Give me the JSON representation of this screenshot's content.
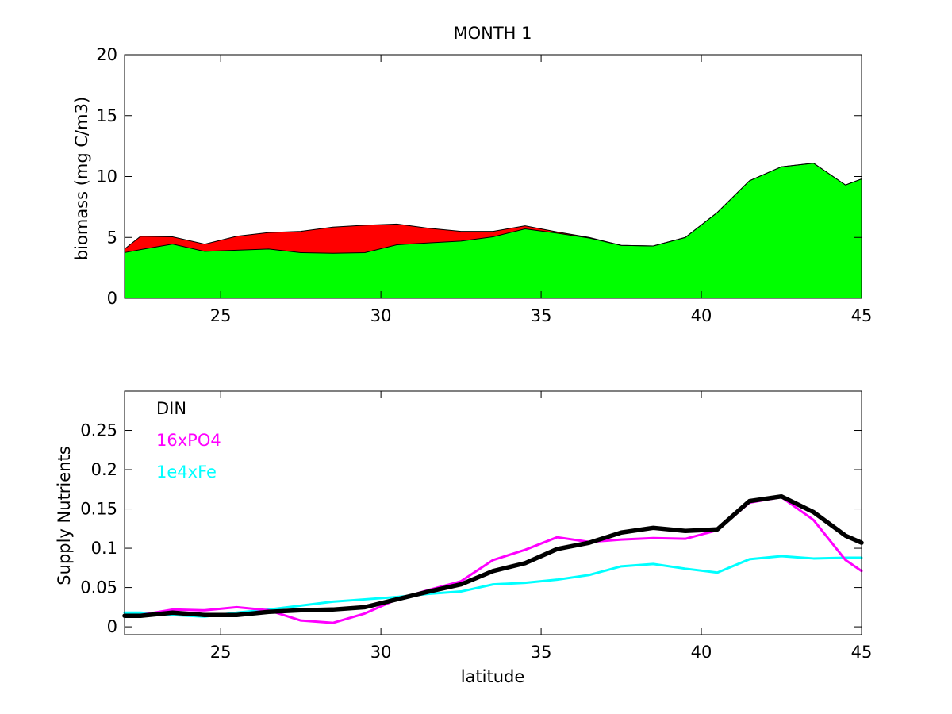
{
  "figure": {
    "title": "MONTH 1"
  },
  "chart_data": [
    {
      "type": "area",
      "stacked": true,
      "title": "MONTH 1",
      "xlabel": "",
      "ylabel": "biomass (mg C/m3)",
      "xlim": [
        22,
        45
      ],
      "ylim": [
        0,
        20
      ],
      "xticks": [
        25,
        30,
        35,
        40,
        45
      ],
      "yticks": [
        0,
        5,
        10,
        15,
        20
      ],
      "grid": false,
      "x": [
        22,
        22.5,
        23.5,
        24.5,
        25.5,
        26.5,
        27.5,
        28.5,
        29.5,
        30.5,
        31.5,
        32.5,
        33.5,
        34.5,
        35.5,
        36.5,
        37.5,
        38.5,
        39.5,
        40.5,
        41.5,
        42.5,
        43.5,
        44.5,
        45
      ],
      "series": [
        {
          "color": "#00ff00",
          "values": [
            3.75,
            4.0,
            4.45,
            3.85,
            3.95,
            4.05,
            3.75,
            3.7,
            3.75,
            4.4,
            4.55,
            4.7,
            5.05,
            5.7,
            5.35,
            4.95,
            4.35,
            4.3,
            5.0,
            7.05,
            9.65,
            10.8,
            11.1,
            9.3,
            9.8
          ]
        },
        {
          "color": "#ff0000",
          "values": [
            0.3,
            1.1,
            0.6,
            0.6,
            1.15,
            1.35,
            1.75,
            2.15,
            2.25,
            1.7,
            1.2,
            0.8,
            0.45,
            0.25,
            0.1,
            0.05,
            0.0,
            0.0,
            0.0,
            0.0,
            0.0,
            0.0,
            0.0,
            0.0,
            0.0
          ]
        }
      ]
    },
    {
      "type": "line",
      "title": "",
      "xlabel": "latitude",
      "ylabel": "Supply Nutrients",
      "xlim": [
        22,
        45
      ],
      "ylim": [
        -0.01,
        0.3
      ],
      "xticks": [
        25,
        30,
        35,
        40,
        45
      ],
      "yticks": [
        0,
        0.05,
        0.1,
        0.15,
        0.2,
        0.25
      ],
      "grid": false,
      "legend_position": "top-left",
      "x": [
        22,
        22.5,
        23.5,
        24.5,
        25.5,
        26.5,
        27.5,
        28.5,
        29.5,
        30.5,
        31.5,
        32.5,
        33.5,
        34.5,
        35.5,
        36.5,
        37.5,
        38.5,
        39.5,
        40.5,
        41.5,
        42.5,
        43.5,
        44.5,
        45
      ],
      "series": [
        {
          "name": "1e4xFe",
          "color": "#00ffff",
          "width": 3,
          "values": [
            0.018,
            0.018,
            0.015,
            0.013,
            0.018,
            0.022,
            0.027,
            0.032,
            0.035,
            0.038,
            0.042,
            0.045,
            0.054,
            0.056,
            0.06,
            0.066,
            0.077,
            0.08,
            0.074,
            0.069,
            0.086,
            0.09,
            0.087,
            0.088,
            0.088
          ]
        },
        {
          "name": "16xPO4",
          "color": "#ff00ff",
          "width": 3,
          "values": [
            0.015,
            0.015,
            0.022,
            0.021,
            0.025,
            0.021,
            0.008,
            0.005,
            0.017,
            0.035,
            0.047,
            0.058,
            0.085,
            0.098,
            0.114,
            0.108,
            0.111,
            0.113,
            0.112,
            0.123,
            0.158,
            0.165,
            0.136,
            0.085,
            0.071
          ]
        },
        {
          "name": "DIN",
          "color": "#000000",
          "width": 5.5,
          "values": [
            0.014,
            0.014,
            0.018,
            0.015,
            0.015,
            0.019,
            0.021,
            0.022,
            0.025,
            0.035,
            0.045,
            0.054,
            0.071,
            0.081,
            0.099,
            0.107,
            0.12,
            0.126,
            0.122,
            0.124,
            0.16,
            0.166,
            0.146,
            0.116,
            0.107
          ]
        }
      ],
      "legend": [
        {
          "label": "DIN",
          "color": "#000000"
        },
        {
          "label": "16xPO4",
          "color": "#ff00ff"
        },
        {
          "label": "1e4xFe",
          "color": "#00ffff"
        }
      ]
    }
  ]
}
